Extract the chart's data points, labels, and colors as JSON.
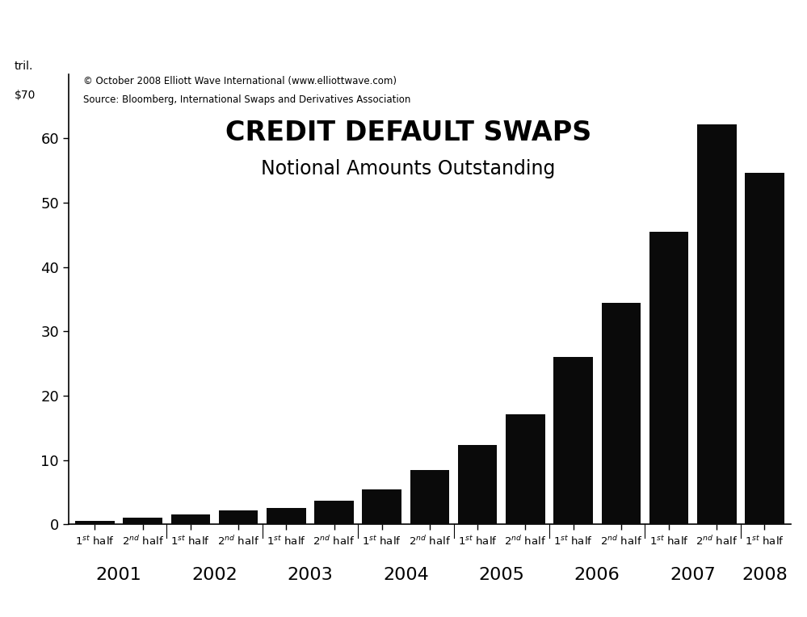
{
  "title": "CREDIT DEFAULT SWAPS",
  "subtitle": "Notional Amounts Outstanding",
  "copyright": "© October 2008 Elliott Wave International (www.elliottwave.com)",
  "source": "Source: Bloomberg, International Swaps and Derivatives Association",
  "bar_values": [
    0.5,
    1.0,
    1.5,
    2.2,
    2.6,
    3.7,
    5.4,
    8.4,
    12.4,
    17.1,
    26.0,
    34.4,
    45.5,
    62.2,
    54.6
  ],
  "year_labels": [
    "2001",
    "2002",
    "2003",
    "2004",
    "2005",
    "2006",
    "2007",
    "2008"
  ],
  "bar_color": "#0a0a0a",
  "background_color": "#ffffff",
  "ylim": [
    0,
    70
  ],
  "yticks": [
    0,
    10,
    20,
    30,
    40,
    50,
    60
  ],
  "bar_width": 0.82,
  "title_fontsize": 24,
  "subtitle_fontsize": 17,
  "tick_label_fontsize": 9.5,
  "year_label_fontsize": 16,
  "ytick_fontsize": 13,
  "copyright_fontsize": 8.5,
  "ylabel_fontsize": 10
}
